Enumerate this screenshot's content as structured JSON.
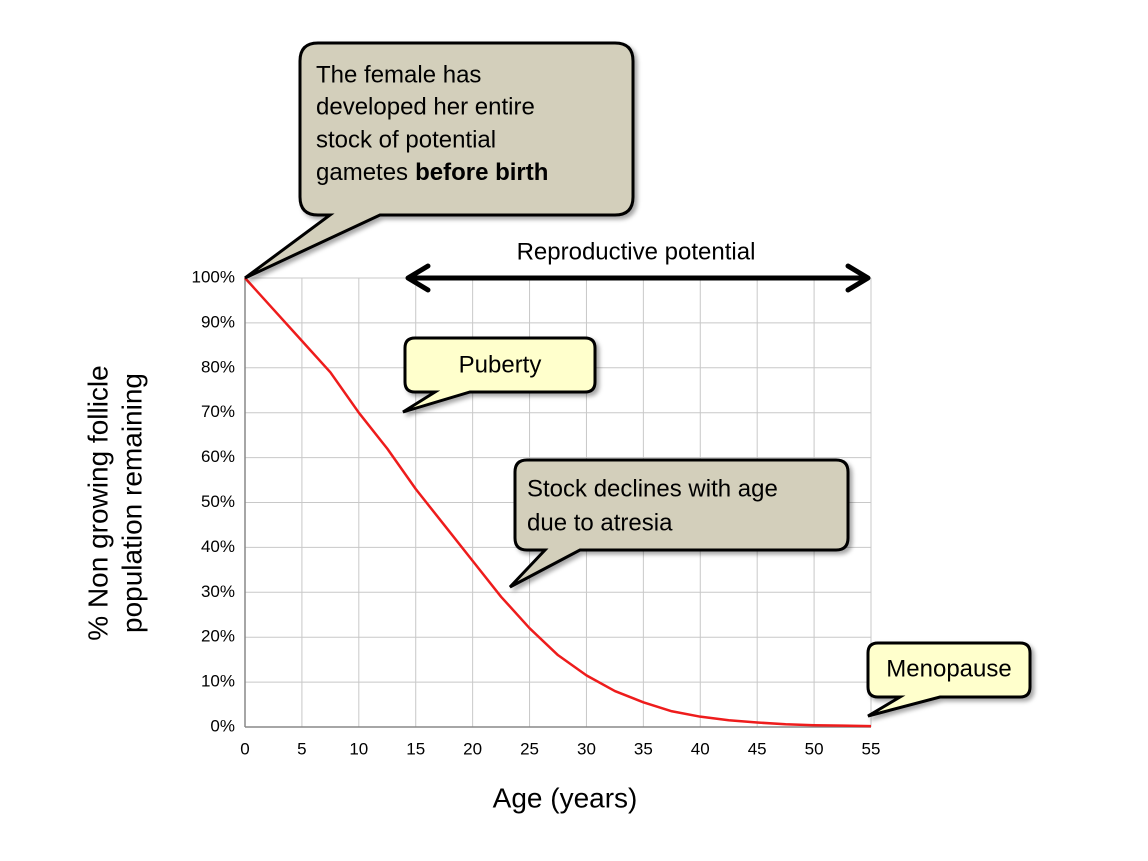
{
  "chart_data": {
    "type": "line",
    "x_label": "Age (years)",
    "y_label": [
      "% Non growing follicle",
      "population remaining"
    ],
    "x": [
      0,
      2.5,
      5,
      7.5,
      10,
      12.5,
      15,
      17.5,
      20,
      22.5,
      25,
      27.5,
      30,
      32.5,
      35,
      37.5,
      40,
      42.5,
      45,
      47.5,
      50,
      52.5,
      55
    ],
    "series": [
      {
        "color": "#ee1c1c",
        "values": [
          100,
          93,
          86,
          79,
          70,
          62,
          53,
          45,
          37,
          29,
          22,
          16,
          11.5,
          8,
          5.5,
          3.5,
          2.3,
          1.5,
          1,
          0.6,
          0.4,
          0.3,
          0.2
        ]
      }
    ],
    "xlim": [
      0,
      55
    ],
    "xticks": [
      0,
      5,
      10,
      15,
      20,
      25,
      30,
      35,
      40,
      45,
      50,
      55
    ],
    "ylim": [
      0,
      100
    ],
    "yticks": [
      {
        "value": 0,
        "label": "0%"
      },
      {
        "value": 10,
        "label": "10%"
      },
      {
        "value": 20,
        "label": "20%"
      },
      {
        "value": 30,
        "label": "30%"
      },
      {
        "value": 40,
        "label": "40%"
      },
      {
        "value": 50,
        "label": "50%"
      },
      {
        "value": 60,
        "label": "60%"
      },
      {
        "value": 70,
        "label": "70%"
      },
      {
        "value": 80,
        "label": "80%"
      },
      {
        "value": 90,
        "label": "90%"
      },
      {
        "value": 100,
        "label": "100%"
      }
    ],
    "grid": true,
    "range_annotation": "Reproductive potential",
    "annotations": [
      {
        "lines": [
          "The female has",
          "developed her entire",
          "stock of potential",
          "gametes"
        ],
        "bold": "before birth"
      },
      {
        "lines": [
          "Puberty"
        ]
      },
      {
        "lines": [
          "Stock declines with age",
          "due to atresia"
        ]
      },
      {
        "lines": [
          "Menopause"
        ]
      }
    ]
  }
}
